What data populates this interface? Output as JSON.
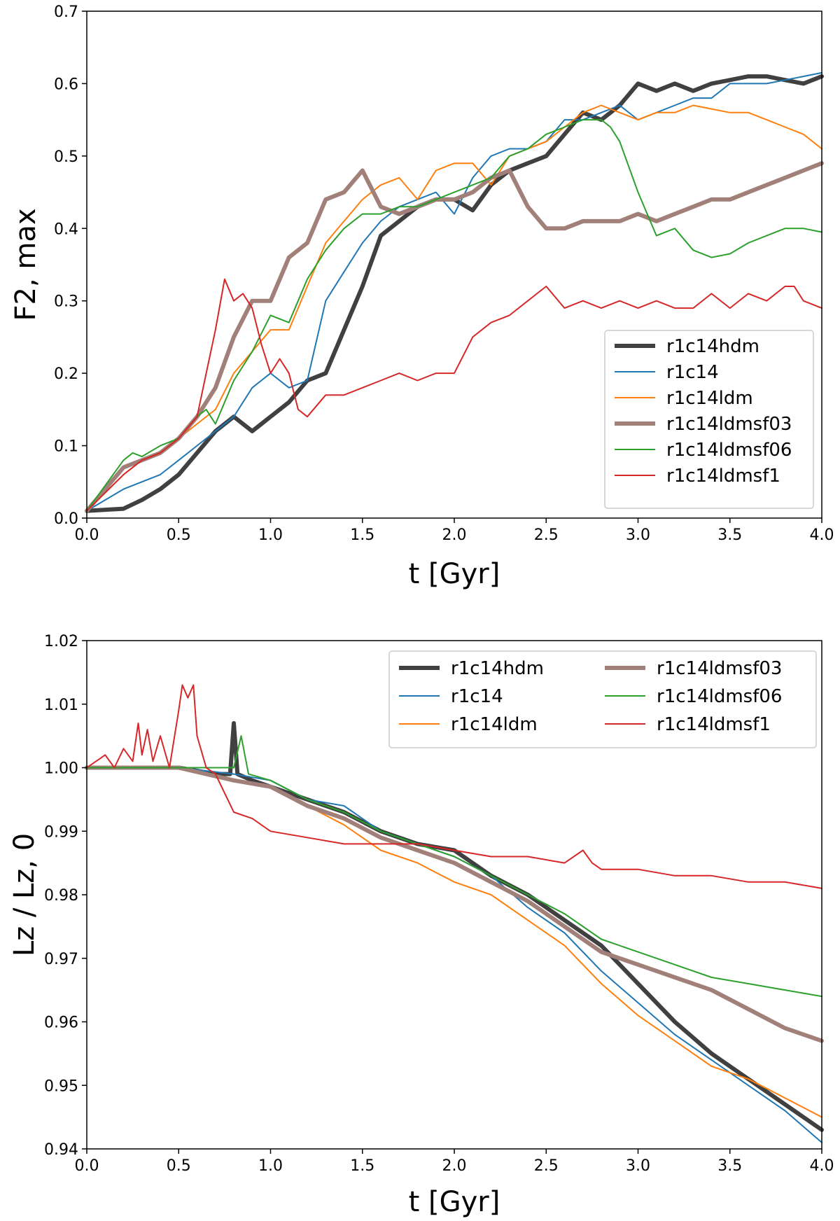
{
  "chart_data": [
    {
      "type": "line",
      "title": "",
      "xlabel": "t [Gyr]",
      "ylabel": "F2, max",
      "xlim": [
        0.0,
        4.0
      ],
      "ylim": [
        0.0,
        0.7
      ],
      "xticks": [
        "0.0",
        "0.5",
        "1.0",
        "1.5",
        "2.0",
        "2.5",
        "3.0",
        "3.5",
        "4.0"
      ],
      "yticks": [
        "0.0",
        "0.1",
        "0.2",
        "0.3",
        "0.4",
        "0.5",
        "0.6",
        "0.7"
      ],
      "grid": false,
      "legend": {
        "placement": "lower-right",
        "columns": 1
      },
      "series": [
        {
          "name": "r1c14hdm",
          "color": "#404040",
          "width": 6,
          "x": [
            0,
            0.2,
            0.3,
            0.4,
            0.5,
            0.6,
            0.7,
            0.8,
            0.85,
            0.9,
            1.0,
            1.1,
            1.2,
            1.3,
            1.4,
            1.5,
            1.6,
            1.7,
            1.8,
            1.9,
            2.0,
            2.1,
            2.2,
            2.3,
            2.4,
            2.5,
            2.6,
            2.7,
            2.8,
            2.9,
            3.0,
            3.1,
            3.2,
            3.3,
            3.4,
            3.5,
            3.6,
            3.7,
            3.8,
            3.9,
            4.0
          ],
          "y": [
            0.01,
            0.013,
            0.025,
            0.04,
            0.06,
            0.09,
            0.12,
            0.14,
            0.13,
            0.12,
            0.14,
            0.16,
            0.19,
            0.2,
            0.26,
            0.32,
            0.39,
            0.41,
            0.43,
            0.44,
            0.44,
            0.425,
            0.46,
            0.48,
            0.49,
            0.5,
            0.53,
            0.56,
            0.55,
            0.57,
            0.6,
            0.59,
            0.6,
            0.59,
            0.6,
            0.605,
            0.61,
            0.61,
            0.605,
            0.6,
            0.61
          ]
        },
        {
          "name": "r1c14",
          "color": "#1f77b4",
          "width": 2,
          "x": [
            0,
            0.2,
            0.4,
            0.5,
            0.6,
            0.7,
            0.8,
            0.9,
            1.0,
            1.1,
            1.2,
            1.3,
            1.4,
            1.5,
            1.6,
            1.7,
            1.8,
            1.9,
            2.0,
            2.1,
            2.2,
            2.3,
            2.4,
            2.5,
            2.6,
            2.7,
            2.8,
            2.9,
            3.0,
            3.1,
            3.2,
            3.3,
            3.4,
            3.5,
            3.6,
            3.7,
            3.8,
            3.9,
            4.0
          ],
          "y": [
            0.01,
            0.04,
            0.06,
            0.08,
            0.1,
            0.12,
            0.14,
            0.18,
            0.2,
            0.18,
            0.19,
            0.3,
            0.34,
            0.38,
            0.41,
            0.43,
            0.44,
            0.45,
            0.42,
            0.47,
            0.5,
            0.51,
            0.51,
            0.52,
            0.55,
            0.55,
            0.56,
            0.57,
            0.55,
            0.56,
            0.57,
            0.58,
            0.58,
            0.6,
            0.6,
            0.6,
            0.605,
            0.61,
            0.615
          ]
        },
        {
          "name": "r1c14ldm",
          "color": "#ff7f0e",
          "width": 2,
          "x": [
            0,
            0.2,
            0.3,
            0.4,
            0.5,
            0.6,
            0.7,
            0.8,
            0.9,
            1.0,
            1.1,
            1.2,
            1.3,
            1.4,
            1.5,
            1.6,
            1.7,
            1.8,
            1.9,
            2.0,
            2.1,
            2.2,
            2.3,
            2.4,
            2.5,
            2.6,
            2.7,
            2.8,
            2.9,
            3.0,
            3.1,
            3.2,
            3.3,
            3.4,
            3.5,
            3.6,
            3.7,
            3.8,
            3.9,
            4.0
          ],
          "y": [
            0.01,
            0.06,
            0.08,
            0.09,
            0.11,
            0.13,
            0.15,
            0.2,
            0.23,
            0.26,
            0.26,
            0.32,
            0.38,
            0.41,
            0.44,
            0.46,
            0.47,
            0.44,
            0.48,
            0.49,
            0.49,
            0.46,
            0.5,
            0.51,
            0.52,
            0.54,
            0.56,
            0.57,
            0.56,
            0.55,
            0.56,
            0.56,
            0.57,
            0.565,
            0.56,
            0.56,
            0.55,
            0.54,
            0.53,
            0.51
          ]
        },
        {
          "name": "r1c14ldmsf03",
          "color": "#a1807a",
          "width": 6,
          "x": [
            0,
            0.2,
            0.3,
            0.4,
            0.5,
            0.6,
            0.7,
            0.8,
            0.9,
            1.0,
            1.1,
            1.2,
            1.3,
            1.4,
            1.5,
            1.6,
            1.7,
            1.8,
            1.9,
            2.0,
            2.1,
            2.2,
            2.3,
            2.4,
            2.5,
            2.6,
            2.7,
            2.8,
            2.9,
            3.0,
            3.1,
            3.2,
            3.3,
            3.4,
            3.5,
            3.6,
            3.7,
            3.8,
            3.9,
            4.0
          ],
          "y": [
            0.01,
            0.07,
            0.08,
            0.09,
            0.11,
            0.14,
            0.18,
            0.25,
            0.3,
            0.3,
            0.36,
            0.38,
            0.44,
            0.45,
            0.48,
            0.43,
            0.42,
            0.43,
            0.44,
            0.44,
            0.45,
            0.47,
            0.48,
            0.43,
            0.4,
            0.4,
            0.41,
            0.41,
            0.41,
            0.42,
            0.41,
            0.42,
            0.43,
            0.44,
            0.44,
            0.45,
            0.46,
            0.47,
            0.48,
            0.49
          ]
        },
        {
          "name": "r1c14ldmsf06",
          "color": "#2ca02c",
          "width": 2,
          "x": [
            0,
            0.2,
            0.25,
            0.3,
            0.4,
            0.5,
            0.6,
            0.65,
            0.7,
            0.8,
            0.9,
            1.0,
            1.1,
            1.2,
            1.3,
            1.4,
            1.5,
            1.6,
            1.7,
            1.8,
            1.9,
            2.0,
            2.1,
            2.2,
            2.3,
            2.4,
            2.5,
            2.6,
            2.7,
            2.8,
            2.85,
            2.9,
            3.0,
            3.05,
            3.1,
            3.2,
            3.3,
            3.4,
            3.5,
            3.6,
            3.7,
            3.8,
            3.9,
            4.0
          ],
          "y": [
            0.01,
            0.08,
            0.09,
            0.085,
            0.1,
            0.11,
            0.14,
            0.15,
            0.13,
            0.19,
            0.23,
            0.28,
            0.27,
            0.33,
            0.37,
            0.4,
            0.42,
            0.42,
            0.43,
            0.43,
            0.44,
            0.45,
            0.46,
            0.47,
            0.5,
            0.51,
            0.53,
            0.54,
            0.55,
            0.55,
            0.54,
            0.52,
            0.45,
            0.42,
            0.39,
            0.4,
            0.37,
            0.36,
            0.365,
            0.38,
            0.39,
            0.4,
            0.4,
            0.395
          ]
        },
        {
          "name": "r1c14ldmsf1",
          "color": "#d62728",
          "width": 2,
          "x": [
            0,
            0.2,
            0.3,
            0.4,
            0.5,
            0.6,
            0.65,
            0.7,
            0.75,
            0.8,
            0.85,
            0.9,
            0.95,
            1.0,
            1.05,
            1.1,
            1.15,
            1.2,
            1.3,
            1.4,
            1.5,
            1.6,
            1.7,
            1.8,
            1.9,
            2.0,
            2.1,
            2.2,
            2.3,
            2.4,
            2.5,
            2.6,
            2.7,
            2.8,
            2.9,
            3.0,
            3.1,
            3.2,
            3.3,
            3.4,
            3.5,
            3.6,
            3.7,
            3.8,
            3.85,
            3.9,
            4.0
          ],
          "y": [
            0.01,
            0.06,
            0.08,
            0.09,
            0.11,
            0.14,
            0.2,
            0.26,
            0.33,
            0.3,
            0.31,
            0.29,
            0.24,
            0.2,
            0.22,
            0.2,
            0.15,
            0.14,
            0.17,
            0.17,
            0.18,
            0.19,
            0.2,
            0.19,
            0.2,
            0.2,
            0.25,
            0.27,
            0.28,
            0.3,
            0.32,
            0.29,
            0.3,
            0.29,
            0.3,
            0.29,
            0.3,
            0.29,
            0.29,
            0.31,
            0.29,
            0.31,
            0.3,
            0.32,
            0.32,
            0.3,
            0.29
          ]
        }
      ]
    },
    {
      "type": "line",
      "title": "",
      "xlabel": "t [Gyr]",
      "ylabel": "Lz / Lz, 0",
      "xlim": [
        0.0,
        4.0
      ],
      "ylim": [
        0.94,
        1.02
      ],
      "xticks": [
        "0.0",
        "0.5",
        "1.0",
        "1.5",
        "2.0",
        "2.5",
        "3.0",
        "3.5",
        "4.0"
      ],
      "yticks": [
        "0.94",
        "0.95",
        "0.96",
        "0.97",
        "0.98",
        "0.99",
        "1.00",
        "1.01",
        "1.02"
      ],
      "grid": false,
      "legend": {
        "placement": "top-right",
        "columns": 2
      },
      "series": [
        {
          "name": "r1c14hdm",
          "color": "#404040",
          "width": 6,
          "x": [
            0,
            0.5,
            0.7,
            0.78,
            0.8,
            0.82,
            0.9,
            1.0,
            1.2,
            1.4,
            1.6,
            1.8,
            2.0,
            2.2,
            2.4,
            2.6,
            2.8,
            3.0,
            3.2,
            3.4,
            3.6,
            3.8,
            4.0
          ],
          "y": [
            1.0,
            1.0,
            0.999,
            0.999,
            1.007,
            0.999,
            0.998,
            0.997,
            0.995,
            0.993,
            0.99,
            0.988,
            0.987,
            0.983,
            0.98,
            0.976,
            0.972,
            0.966,
            0.96,
            0.955,
            0.951,
            0.947,
            0.943
          ]
        },
        {
          "name": "r1c14",
          "color": "#1f77b4",
          "width": 2,
          "x": [
            0,
            0.5,
            0.8,
            1.0,
            1.2,
            1.4,
            1.6,
            1.8,
            2.0,
            2.2,
            2.4,
            2.6,
            2.8,
            3.0,
            3.2,
            3.4,
            3.6,
            3.8,
            4.0
          ],
          "y": [
            1.0,
            1.0,
            0.999,
            0.998,
            0.995,
            0.994,
            0.99,
            0.988,
            0.986,
            0.983,
            0.978,
            0.974,
            0.968,
            0.963,
            0.958,
            0.954,
            0.95,
            0.946,
            0.941
          ]
        },
        {
          "name": "r1c14ldm",
          "color": "#ff7f0e",
          "width": 2,
          "x": [
            0,
            0.5,
            0.8,
            1.0,
            1.2,
            1.4,
            1.6,
            1.8,
            2.0,
            2.2,
            2.4,
            2.6,
            2.8,
            3.0,
            3.2,
            3.4,
            3.6,
            3.8,
            4.0
          ],
          "y": [
            1.0,
            1.0,
            0.998,
            0.997,
            0.994,
            0.991,
            0.987,
            0.985,
            0.982,
            0.98,
            0.976,
            0.972,
            0.966,
            0.961,
            0.957,
            0.953,
            0.951,
            0.948,
            0.945
          ]
        },
        {
          "name": "r1c14ldmsf03",
          "color": "#a1807a",
          "width": 6,
          "x": [
            0,
            0.5,
            0.8,
            1.0,
            1.2,
            1.4,
            1.6,
            1.8,
            2.0,
            2.2,
            2.4,
            2.6,
            2.8,
            3.0,
            3.2,
            3.4,
            3.6,
            3.8,
            4.0
          ],
          "y": [
            1.0,
            1.0,
            0.998,
            0.997,
            0.994,
            0.992,
            0.989,
            0.987,
            0.985,
            0.982,
            0.979,
            0.975,
            0.971,
            0.969,
            0.967,
            0.965,
            0.962,
            0.959,
            0.957
          ]
        },
        {
          "name": "r1c14ldmsf06",
          "color": "#2ca02c",
          "width": 2,
          "x": [
            0,
            0.5,
            0.8,
            0.84,
            0.88,
            1.0,
            1.2,
            1.4,
            1.6,
            1.8,
            2.0,
            2.2,
            2.4,
            2.6,
            2.8,
            3.0,
            3.2,
            3.4,
            3.6,
            3.8,
            4.0
          ],
          "y": [
            1.0,
            1.0,
            1.0,
            1.005,
            0.999,
            0.998,
            0.995,
            0.993,
            0.99,
            0.988,
            0.986,
            0.983,
            0.98,
            0.977,
            0.973,
            0.971,
            0.969,
            0.967,
            0.966,
            0.965,
            0.964
          ]
        },
        {
          "name": "r1c14ldmsf1",
          "color": "#d62728",
          "width": 2,
          "x": [
            0,
            0.1,
            0.15,
            0.2,
            0.25,
            0.28,
            0.3,
            0.33,
            0.36,
            0.4,
            0.45,
            0.5,
            0.52,
            0.55,
            0.58,
            0.6,
            0.65,
            0.7,
            0.75,
            0.8,
            0.9,
            1.0,
            1.2,
            1.4,
            1.6,
            1.8,
            2.0,
            2.2,
            2.4,
            2.6,
            2.7,
            2.75,
            2.8,
            3.0,
            3.2,
            3.4,
            3.6,
            3.8,
            4.0
          ],
          "y": [
            1.0,
            1.002,
            1.0,
            1.003,
            1.001,
            1.007,
            1.002,
            1.006,
            1.001,
            1.005,
            1.0,
            1.009,
            1.013,
            1.011,
            1.013,
            1.005,
            1.0,
            0.999,
            0.996,
            0.993,
            0.992,
            0.99,
            0.989,
            0.988,
            0.988,
            0.988,
            0.987,
            0.986,
            0.986,
            0.985,
            0.987,
            0.985,
            0.984,
            0.984,
            0.983,
            0.983,
            0.982,
            0.982,
            0.981
          ]
        }
      ]
    }
  ]
}
